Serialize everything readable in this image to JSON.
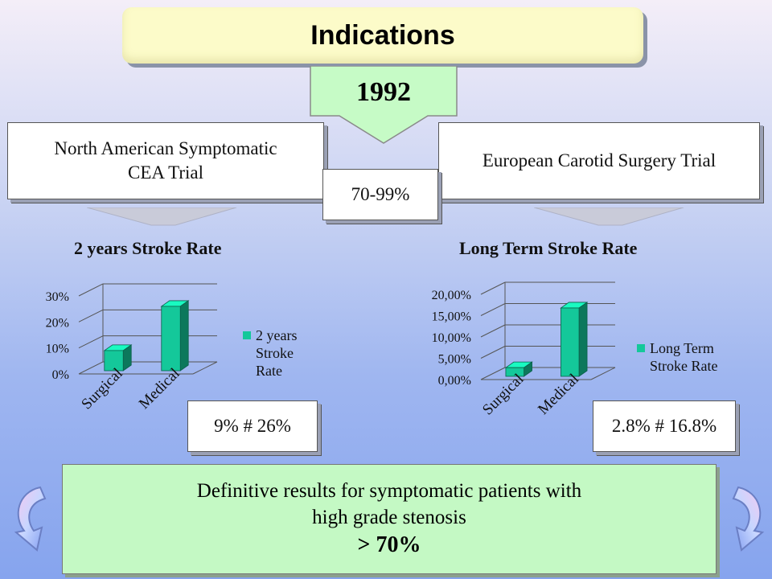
{
  "title": "Indications",
  "year": "1992",
  "nascet": {
    "line1": "North American Symptomatic",
    "line2": "CEA Trial"
  },
  "ecst": "European Carotid Surgery Trial",
  "range": "70-99%",
  "chart_data": [
    {
      "type": "bar",
      "title": "2 years Stroke Rate",
      "categories": [
        "Surgical",
        "Medical"
      ],
      "series": [
        {
          "name": "2 years Stroke Rate",
          "values": [
            0.09,
            0.26
          ]
        }
      ],
      "legend_lines": [
        "2 years",
        "Stroke",
        "Rate"
      ],
      "yticks": [
        "0%",
        "10%",
        "20%",
        "30%"
      ],
      "ylim": [
        0,
        0.3
      ],
      "legend": "right",
      "grid": true,
      "color": "#14c89a",
      "callout": "9% # 26%"
    },
    {
      "type": "bar",
      "title": "Long Term Stroke Rate",
      "categories": [
        "Surgical",
        "Medical"
      ],
      "series": [
        {
          "name": "Long Term Stroke Rate",
          "values": [
            0.028,
            0.168
          ]
        }
      ],
      "legend_lines": [
        "Long Term",
        "Stroke Rate"
      ],
      "yticks": [
        "0,00%",
        "5,00%",
        "10,00%",
        "15,00%",
        "20,00%"
      ],
      "ylim": [
        0,
        0.2
      ],
      "legend": "right",
      "grid": true,
      "color": "#14c89a",
      "callout": "2.8% # 16.8%"
    }
  ],
  "conclusion": {
    "line1": "Definitive results for symptomatic patients with",
    "line2": "high grade stenosis",
    "line3": "> 70%"
  },
  "nav": {
    "back_icon": "curved-arrow-back-icon",
    "forward_icon": "curved-arrow-forward-icon"
  }
}
